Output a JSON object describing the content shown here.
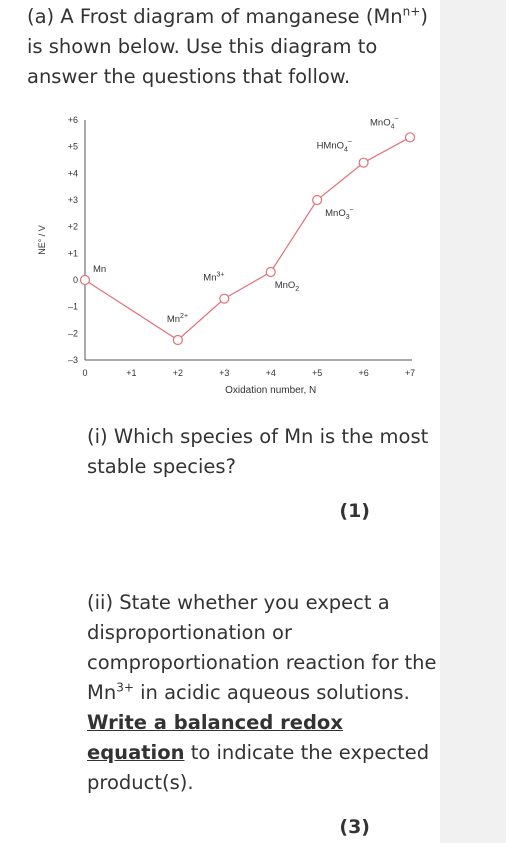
{
  "intro": {
    "part1": "(a) A Frost diagram of manganese (Mn",
    "sup": "n+",
    "part2": ") is shown below. Use this diagram to answer the questions that follow."
  },
  "chart_data": {
    "type": "line",
    "xlabel": "Oxidation number, N",
    "ylabel": "NE° / V",
    "xticks": [
      "0",
      "+1",
      "+2",
      "+3",
      "+4",
      "+5",
      "+6",
      "+7"
    ],
    "yticks": [
      "+6",
      "+5",
      "+4",
      "+3",
      "+2",
      "+1",
      "0",
      "–1",
      "–2",
      "–3"
    ],
    "xlim": [
      0,
      7
    ],
    "ylim": [
      -3,
      6
    ],
    "points": [
      {
        "x": 0,
        "y": 0,
        "label": "Mn"
      },
      {
        "x": 2,
        "y": -2.25,
        "label": "Mn2+"
      },
      {
        "x": 3,
        "y": -0.7,
        "label": "Mn3+"
      },
      {
        "x": 4,
        "y": 0.3,
        "label": "MnO2"
      },
      {
        "x": 5,
        "y": 3.0,
        "label": "MnO3-"
      },
      {
        "x": 6,
        "y": 4.4,
        "label": "HMnO4-"
      },
      {
        "x": 7,
        "y": 5.35,
        "label": "MnO4-"
      }
    ],
    "line_color": "#e0707a"
  },
  "q1": {
    "text": "(i) Which species of Mn is the most stable species?",
    "marks": "(1)"
  },
  "q2": {
    "part1": "(ii) State whether you expect a disproportionation or comproportionation reaction for the Mn",
    "sup": "3+",
    "part2": " in acidic aqueous solutions. ",
    "emph": "Write a balanced redox equation",
    "part3": " to indicate the expected product(s).",
    "marks": "(3)"
  }
}
